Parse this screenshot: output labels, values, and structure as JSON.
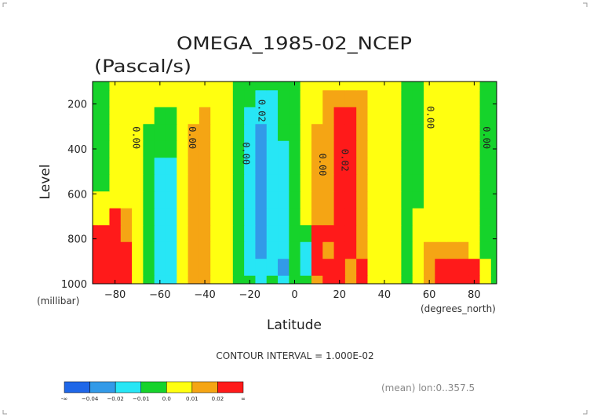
{
  "chart_data": {
    "type": "heatmap",
    "title": "OMEGA_1985-02_NCEP",
    "subtitle": "(Pascal/s)",
    "xlabel": "Latitude",
    "ylabel": "Level",
    "x_units": "(degrees_north)",
    "y_units": "(millibar)",
    "xlim": [
      -90,
      90
    ],
    "ylim": [
      1000,
      100
    ],
    "x_ticks": [
      "−80",
      "−60",
      "−40",
      "−20",
      "0",
      "20",
      "40",
      "60",
      "80"
    ],
    "y_ticks": [
      "200",
      "400",
      "600",
      "800",
      "1000"
    ],
    "contour_interval_text": "CONTOUR INTERVAL = 1.000E-02",
    "averaging_text": "(mean) lon:0..357.5",
    "contour_labels": [
      {
        "text": "0.00",
        "lat": -72,
        "level": 350
      },
      {
        "text": "0.00",
        "lat": -47,
        "level": 350
      },
      {
        "text": "0.00",
        "lat": -23,
        "level": 420
      },
      {
        "text": "0.02",
        "lat": -16,
        "level": 230
      },
      {
        "text": "0.00",
        "lat": 11,
        "level": 470
      },
      {
        "text": "0.02",
        "lat": 21,
        "level": 450
      },
      {
        "text": "0.00",
        "lat": 59,
        "level": 260
      },
      {
        "text": "0.00",
        "lat": 84,
        "level": 350
      }
    ],
    "colorbar": {
      "colors": [
        "#1f67e8",
        "#329ae8",
        "#27e6f5",
        "#16d32b",
        "#ffff10",
        "#f5a514",
        "#ff1a1a"
      ],
      "tick_labels": [
        "-∞",
        "−0.04",
        "−0.02",
        "−0.01",
        "0.0",
        "0.01",
        "0.02",
        "∞"
      ],
      "level_ranges": [
        [
          -0.05,
          -0.04
        ],
        [
          -0.04,
          -0.02
        ],
        [
          -0.02,
          -0.01
        ],
        [
          -0.01,
          0.0
        ],
        [
          0.0,
          0.01
        ],
        [
          0.01,
          0.02
        ],
        [
          0.02,
          0.05
        ]
      ]
    },
    "levels_mb": [
      1000,
      925,
      850,
      775,
      700,
      625,
      550,
      475,
      400,
      325,
      250,
      175,
      100
    ],
    "lat_values": [
      -90,
      -85,
      -80,
      -75,
      -70,
      -65,
      -60,
      -55,
      -50,
      -45,
      -40,
      -35,
      -30,
      -25,
      -20,
      -15,
      -10,
      -5,
      0,
      5,
      10,
      15,
      20,
      25,
      30,
      35,
      40,
      45,
      50,
      55,
      60,
      65,
      70,
      75,
      80,
      85,
      90
    ],
    "omega_values": [
      [
        0.05,
        0.05,
        0.045,
        0.025,
        0.0,
        -0.008,
        -0.012,
        -0.012,
        0.002,
        0.012,
        0.012,
        0.004,
        0.002,
        -0.004,
        -0.01,
        -0.015,
        -0.01,
        -0.02,
        -0.005,
        -0.01,
        0.015,
        0.03,
        0.03,
        0.015,
        0.025,
        0.005,
        0.005,
        0.0,
        -0.005,
        0.005,
        0.01,
        0.025,
        0.02,
        0.025,
        0.02,
        0.005,
        -0.005
      ],
      [
        0.05,
        0.045,
        0.04,
        0.025,
        0.002,
        -0.008,
        -0.012,
        -0.012,
        0.002,
        0.012,
        0.012,
        0.004,
        0.002,
        -0.004,
        -0.015,
        -0.02,
        -0.02,
        -0.03,
        -0.005,
        -0.015,
        0.025,
        0.03,
        0.03,
        0.015,
        0.03,
        0.005,
        0.005,
        0.0,
        -0.005,
        0.005,
        0.012,
        0.025,
        0.02,
        0.025,
        0.02,
        0.005,
        -0.005
      ],
      [
        0.04,
        0.04,
        0.035,
        0.022,
        0.004,
        -0.008,
        -0.012,
        -0.012,
        0.002,
        0.012,
        0.015,
        0.006,
        0.002,
        -0.005,
        -0.015,
        -0.025,
        -0.02,
        -0.02,
        -0.005,
        -0.015,
        0.025,
        0.018,
        0.03,
        0.02,
        0.012,
        0.005,
        0.005,
        0.0,
        -0.005,
        0.005,
        0.015,
        0.015,
        0.01,
        0.015,
        0.005,
        -0.005,
        -0.005
      ],
      [
        0.03,
        0.03,
        0.03,
        0.018,
        0.004,
        -0.006,
        -0.012,
        -0.012,
        0.002,
        0.012,
        0.015,
        0.006,
        0.002,
        -0.005,
        -0.015,
        -0.025,
        -0.02,
        -0.015,
        -0.005,
        -0.005,
        0.025,
        0.02,
        0.03,
        0.025,
        0.015,
        0.005,
        0.005,
        0.0,
        -0.005,
        0.005,
        0.005,
        0.005,
        0.005,
        0.005,
        0.002,
        -0.005,
        -0.005
      ],
      [
        0.002,
        0.002,
        0.02,
        0.015,
        0.004,
        -0.004,
        -0.012,
        -0.012,
        0.002,
        0.012,
        0.015,
        0.006,
        0.002,
        -0.005,
        -0.015,
        -0.025,
        -0.02,
        -0.015,
        -0.002,
        0.002,
        0.015,
        0.015,
        0.025,
        0.022,
        0.015,
        0.005,
        0.005,
        0.0,
        -0.005,
        0.005,
        0.005,
        0.005,
        0.005,
        0.005,
        0.002,
        -0.005,
        -0.005
      ],
      [
        0.004,
        0.004,
        0.004,
        0.006,
        0.004,
        -0.004,
        -0.012,
        -0.012,
        0.002,
        0.012,
        0.015,
        0.006,
        0.002,
        -0.005,
        -0.015,
        -0.025,
        -0.02,
        -0.012,
        -0.002,
        0.002,
        0.015,
        0.015,
        0.025,
        0.025,
        0.015,
        0.005,
        0.005,
        0.0,
        -0.005,
        -0.005,
        0.005,
        0.005,
        0.005,
        0.005,
        0.002,
        -0.005,
        -0.005
      ],
      [
        -0.005,
        -0.005,
        0.004,
        0.005,
        0.004,
        -0.004,
        -0.012,
        -0.012,
        0.002,
        0.012,
        0.015,
        0.006,
        0.002,
        -0.005,
        -0.015,
        -0.025,
        -0.02,
        -0.012,
        -0.002,
        0.002,
        0.01,
        0.015,
        0.025,
        0.025,
        0.015,
        0.005,
        0.005,
        0.0,
        -0.005,
        -0.005,
        0.005,
        0.005,
        0.005,
        0.005,
        0.002,
        -0.005,
        -0.005
      ],
      [
        -0.005,
        -0.005,
        0.004,
        0.005,
        0.004,
        -0.004,
        -0.012,
        -0.012,
        0.002,
        0.012,
        0.015,
        0.006,
        0.002,
        -0.005,
        -0.015,
        -0.025,
        -0.02,
        -0.012,
        -0.002,
        0.002,
        0.01,
        0.015,
        0.025,
        0.025,
        0.015,
        0.005,
        0.005,
        0.0,
        -0.005,
        -0.005,
        0.005,
        0.005,
        0.005,
        0.005,
        0.002,
        -0.005,
        -0.005
      ],
      [
        -0.005,
        -0.005,
        0.004,
        0.005,
        0.002,
        -0.004,
        -0.01,
        -0.01,
        0.002,
        0.012,
        0.015,
        0.006,
        0.002,
        -0.005,
        -0.015,
        -0.025,
        -0.02,
        -0.012,
        -0.002,
        0.002,
        0.01,
        0.015,
        0.025,
        0.025,
        0.015,
        0.005,
        0.005,
        0.0,
        -0.005,
        -0.005,
        0.0,
        0.005,
        0.005,
        0.005,
        0.002,
        -0.005,
        -0.005
      ],
      [
        -0.005,
        -0.005,
        0.004,
        0.005,
        0.002,
        -0.002,
        -0.005,
        -0.005,
        0.002,
        0.01,
        0.015,
        0.006,
        0.002,
        -0.005,
        -0.015,
        -0.025,
        -0.02,
        -0.01,
        -0.002,
        0.002,
        0.01,
        0.012,
        0.025,
        0.022,
        0.015,
        0.005,
        0.005,
        0.0,
        -0.005,
        -0.005,
        0.0,
        0.005,
        0.005,
        0.005,
        0.002,
        -0.005,
        -0.005
      ],
      [
        -0.005,
        -0.005,
        0.004,
        0.005,
        0.002,
        0.0,
        -0.002,
        -0.002,
        0.002,
        0.005,
        0.01,
        0.006,
        0.002,
        -0.005,
        -0.015,
        -0.02,
        -0.015,
        -0.008,
        -0.002,
        0.002,
        0.008,
        0.012,
        0.02,
        0.02,
        0.015,
        0.005,
        0.005,
        0.0,
        -0.005,
        -0.005,
        0.0,
        0.005,
        0.005,
        0.005,
        0.002,
        -0.005,
        -0.005
      ],
      [
        -0.005,
        -0.005,
        0.004,
        0.005,
        0.002,
        0.0,
        0.002,
        0.002,
        0.002,
        0.004,
        0.004,
        0.004,
        0.002,
        -0.004,
        -0.01,
        -0.015,
        -0.012,
        -0.006,
        -0.002,
        0.002,
        0.006,
        0.012,
        0.012,
        0.012,
        0.01,
        0.005,
        0.005,
        0.0,
        -0.005,
        -0.005,
        0.0,
        0.005,
        0.005,
        0.005,
        0.002,
        -0.005,
        -0.005
      ],
      [
        -0.005,
        -0.005,
        0.004,
        0.005,
        0.002,
        0.002,
        0.002,
        0.002,
        0.002,
        0.004,
        0.004,
        0.004,
        0.002,
        -0.002,
        -0.006,
        -0.008,
        -0.006,
        -0.004,
        -0.002,
        0.002,
        0.005,
        0.008,
        0.008,
        0.008,
        0.006,
        0.004,
        0.004,
        0.0,
        -0.004,
        -0.004,
        0.0,
        0.004,
        0.004,
        0.004,
        0.002,
        -0.004,
        -0.004
      ]
    ]
  }
}
